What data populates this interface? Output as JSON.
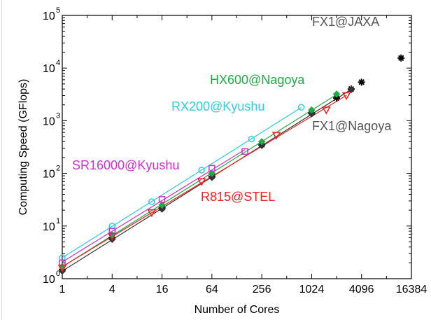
{
  "chart_data": {
    "type": "scatter",
    "title": "",
    "xlabel": "Number of Cores",
    "ylabel": "Computing Speed (GFlops)",
    "xscale": "log2",
    "yscale": "log10",
    "xlim": [
      1,
      16384
    ],
    "ylim": [
      1,
      100000
    ],
    "x_ticks": [
      1,
      4,
      16,
      64,
      256,
      1024,
      4096,
      16384
    ],
    "x_tick_labels": [
      "1",
      "4",
      "16",
      "64",
      "256",
      "1024",
      "4096",
      "16384"
    ],
    "y_ticks": [
      1,
      10,
      100,
      1000,
      10000,
      100000
    ],
    "y_tick_labels": [
      {
        "base": "10",
        "exp": "0"
      },
      {
        "base": "10",
        "exp": "1"
      },
      {
        "base": "10",
        "exp": "2"
      },
      {
        "base": "10",
        "exp": "3"
      },
      {
        "base": "10",
        "exp": "4"
      },
      {
        "base": "10",
        "exp": "5"
      }
    ],
    "grid": false,
    "series": [
      {
        "name": "FX1@JAXA",
        "color": "#000000",
        "marker": "star",
        "fit_line": false,
        "points": [
          [
            1,
            1.5
          ],
          [
            4,
            6
          ],
          [
            16,
            22
          ],
          [
            64,
            88
          ],
          [
            256,
            350
          ],
          [
            1024,
            1400
          ],
          [
            2048,
            2700
          ],
          [
            3072,
            4000
          ],
          [
            4096,
            5400
          ],
          [
            12288,
            15500
          ]
        ]
      },
      {
        "name": "FX1@Nagoya",
        "color": "#333333",
        "marker": "diamond",
        "fit_line": true,
        "points": [
          [
            1,
            1.4
          ],
          [
            4,
            5.6
          ],
          [
            16,
            21
          ],
          [
            64,
            84
          ],
          [
            256,
            340
          ],
          [
            1024,
            1350
          ],
          [
            3072,
            3900
          ]
        ]
      },
      {
        "name": "HX600@Nagoya",
        "color": "#22aa44",
        "marker": "diamond",
        "fit_line": true,
        "points": [
          [
            1,
            1.7
          ],
          [
            4,
            6.8
          ],
          [
            16,
            25
          ],
          [
            64,
            100
          ],
          [
            256,
            400
          ],
          [
            1024,
            1600
          ],
          [
            2048,
            3200
          ]
        ]
      },
      {
        "name": "RX200@Kyushu",
        "color": "#33ccdd",
        "marker": "circle",
        "fit_line": true,
        "points": [
          [
            1,
            2.5
          ],
          [
            4,
            10
          ],
          [
            12,
            29
          ],
          [
            48,
            115
          ],
          [
            192,
            450
          ],
          [
            768,
            1800
          ]
        ]
      },
      {
        "name": "SR16000@Kyushu",
        "color": "#cc33cc",
        "marker": "square",
        "fit_line": true,
        "points": [
          [
            1,
            2
          ],
          [
            4,
            8
          ],
          [
            16,
            32
          ],
          [
            64,
            125
          ],
          [
            160,
            260
          ]
        ]
      },
      {
        "name": "R815@STEL",
        "color": "#ee2222",
        "marker": "triangle-down",
        "fit_line": true,
        "points": [
          [
            1,
            1.6
          ],
          [
            4,
            6.4
          ],
          [
            12,
            18
          ],
          [
            48,
            70
          ],
          [
            384,
            530
          ],
          [
            1536,
            1600
          ],
          [
            2688,
            3000
          ]
        ]
      }
    ],
    "annotations": [
      {
        "text": "FX1@JAXA",
        "series": "FX1@JAXA",
        "color": "#555555"
      },
      {
        "text": "FX1@Nagoya",
        "series": "FX1@Nagoya",
        "color": "#555555"
      },
      {
        "text": "HX600@Nagoya",
        "series": "HX600@Nagoya",
        "color": "#22aa44"
      },
      {
        "text": "RX200@Kyushu",
        "series": "RX200@Kyushu",
        "color": "#33ccdd"
      },
      {
        "text": "SR16000@Kyushu",
        "series": "SR16000@Kyushu",
        "color": "#cc33cc"
      },
      {
        "text": "R815@STEL",
        "series": "R815@STEL",
        "color": "#ee2222"
      }
    ]
  }
}
